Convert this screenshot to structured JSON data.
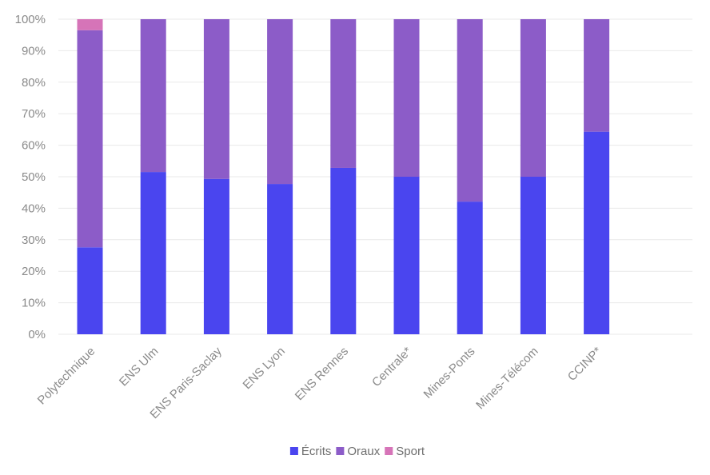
{
  "chart_data": {
    "type": "bar",
    "stacked": true,
    "percent": true,
    "categories": [
      "Polytechnique",
      "ENS Ulm",
      "ENS Paris-Saclay",
      "ENS Lyon",
      "ENS Rennes",
      "Centrale*",
      "Mines-Ponts",
      "Mines-Télécom",
      "CCINP*"
    ],
    "series": [
      {
        "name": "Écrits",
        "color": "#4a45ef",
        "values": [
          27.6,
          51.5,
          49.3,
          47.7,
          52.8,
          50.0,
          42.1,
          50.0,
          64.3
        ]
      },
      {
        "name": "Oraux",
        "color": "#8c5cc8",
        "values": [
          68.9,
          48.5,
          50.7,
          52.3,
          47.2,
          50.0,
          57.9,
          50.0,
          35.7
        ]
      },
      {
        "name": "Sport",
        "color": "#d674b8",
        "values": [
          3.5,
          0,
          0,
          0,
          0,
          0,
          0,
          0,
          0
        ]
      }
    ],
    "y_ticks": [
      "0%",
      "10%",
      "20%",
      "30%",
      "40%",
      "50%",
      "60%",
      "70%",
      "80%",
      "90%",
      "100%"
    ],
    "ylim": [
      0,
      100
    ],
    "grid": true,
    "legend": "bottom",
    "title": "",
    "xlabel": "",
    "ylabel": ""
  }
}
